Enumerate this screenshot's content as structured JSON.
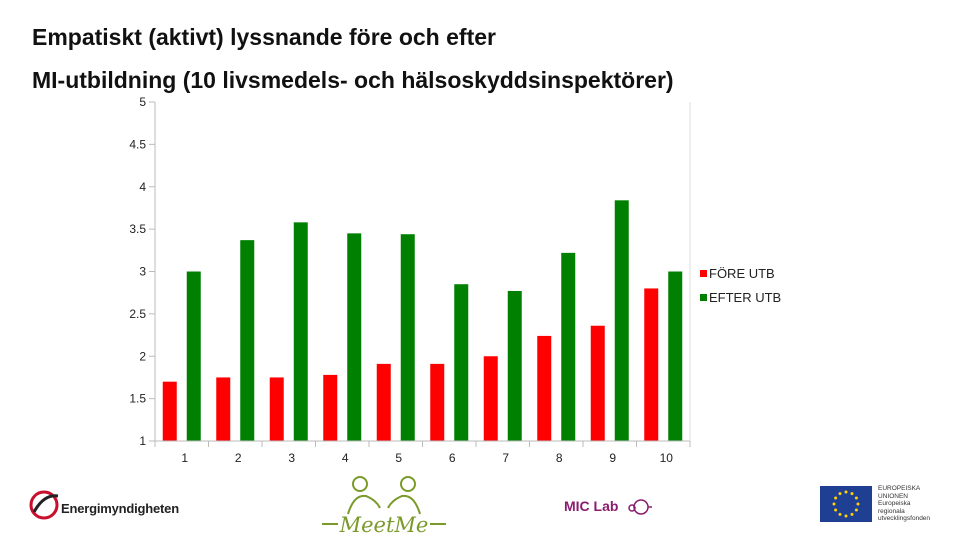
{
  "title_line1": "Empatiskt (aktivt) lyssnande före och efter",
  "title_line2": "MI-utbildning (10 livsmedels- och hälsoskyddsinspektörer)",
  "chart_data": {
    "type": "bar",
    "categories": [
      "1",
      "2",
      "3",
      "4",
      "5",
      "6",
      "7",
      "8",
      "9",
      "10"
    ],
    "series": [
      {
        "name": "FÖRE UTB",
        "color": "#ff0000",
        "values": [
          1.7,
          1.75,
          1.75,
          1.78,
          1.91,
          1.91,
          2.0,
          2.24,
          2.36,
          2.8
        ]
      },
      {
        "name": "EFTER UTB",
        "color": "#008000",
        "values": [
          3.0,
          3.37,
          3.58,
          3.45,
          3.44,
          2.85,
          2.77,
          3.22,
          3.84,
          3.0
        ]
      }
    ],
    "ylim": [
      1,
      5
    ],
    "yticks": [
      "5",
      "4.5",
      "4",
      "3.5",
      "3",
      "2.5",
      "2",
      "1.5",
      "1"
    ],
    "grid": false,
    "legend": "right"
  },
  "logos": {
    "energimyndigheten": "Energimyndigheten",
    "meetme": "MeetMe",
    "miclab": "MIC Lab",
    "eu_text": [
      "EUROPEISKA",
      "UNIONEN",
      "Europeiska",
      "regionala",
      "utvecklingsfonden"
    ]
  }
}
